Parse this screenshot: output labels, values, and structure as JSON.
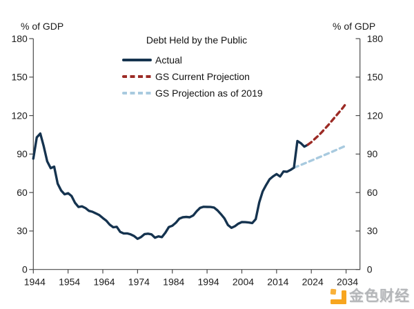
{
  "watermark": {
    "text": "金色财经",
    "logo_color": "#f7a51f",
    "logo_accent_color": "#f9b13a",
    "text_color": "#b4b6b9"
  },
  "chart_data": {
    "type": "line",
    "title": "Debt Held by the Public",
    "left_axis_label": "% of GDP",
    "right_axis_label": "% of GDP",
    "xlabel": "",
    "ylabel": "% of GDP",
    "xlim": [
      1944,
      2038
    ],
    "ylim": [
      0,
      180
    ],
    "x_ticks": [
      1944,
      1954,
      1964,
      1974,
      1984,
      1994,
      2004,
      2014,
      2024,
      2034
    ],
    "y_ticks": [
      0,
      30,
      60,
      90,
      120,
      150,
      180
    ],
    "grid": false,
    "legend_position": "top-center-inside",
    "colors": {
      "axis": "#4a4a4a",
      "text": "#1a1a1a"
    },
    "series": [
      {
        "name": "Actual",
        "color": "#15334f",
        "style": "solid",
        "points": [
          [
            1944,
            86.5
          ],
          [
            1945,
            103
          ],
          [
            1946,
            106
          ],
          [
            1947,
            96
          ],
          [
            1948,
            84.3
          ],
          [
            1949,
            79
          ],
          [
            1950,
            80.2
          ],
          [
            1951,
            66.9
          ],
          [
            1952,
            61.6
          ],
          [
            1953,
            58.6
          ],
          [
            1954,
            59.5
          ],
          [
            1955,
            57.3
          ],
          [
            1956,
            52
          ],
          [
            1957,
            48.7
          ],
          [
            1958,
            49.2
          ],
          [
            1959,
            47.9
          ],
          [
            1960,
            45.7
          ],
          [
            1961,
            45
          ],
          [
            1962,
            43.7
          ],
          [
            1963,
            42.4
          ],
          [
            1964,
            40.1
          ],
          [
            1965,
            38
          ],
          [
            1966,
            34.9
          ],
          [
            1967,
            32.9
          ],
          [
            1968,
            33.3
          ],
          [
            1969,
            29.3
          ],
          [
            1970,
            28.1
          ],
          [
            1971,
            28.1
          ],
          [
            1972,
            27.4
          ],
          [
            1973,
            26.1
          ],
          [
            1974,
            23.9
          ],
          [
            1975,
            25.3
          ],
          [
            1976,
            27.6
          ],
          [
            1977,
            27.9
          ],
          [
            1978,
            27.4
          ],
          [
            1979,
            24.8
          ],
          [
            1980,
            25.8
          ],
          [
            1981,
            25.2
          ],
          [
            1982,
            28.7
          ],
          [
            1983,
            33.1
          ],
          [
            1984,
            34.1
          ],
          [
            1985,
            36.4
          ],
          [
            1986,
            39.6
          ],
          [
            1987,
            40.7
          ],
          [
            1988,
            41
          ],
          [
            1989,
            40.7
          ],
          [
            1990,
            42.1
          ],
          [
            1991,
            45.4
          ],
          [
            1992,
            48
          ],
          [
            1993,
            48.9
          ],
          [
            1994,
            48.8
          ],
          [
            1995,
            48.7
          ],
          [
            1996,
            48.3
          ],
          [
            1997,
            46.1
          ],
          [
            1998,
            43.1
          ],
          [
            1999,
            39.8
          ],
          [
            2000,
            34.7
          ],
          [
            2001,
            32.5
          ],
          [
            2002,
            33.7
          ],
          [
            2003,
            35.7
          ],
          [
            2004,
            37
          ],
          [
            2005,
            36.9
          ],
          [
            2006,
            36.6
          ],
          [
            2007,
            36.2
          ],
          [
            2008,
            39.2
          ],
          [
            2009,
            52.3
          ],
          [
            2010,
            60.9
          ],
          [
            2011,
            65.9
          ],
          [
            2012,
            70.4
          ],
          [
            2013,
            72.6
          ],
          [
            2014,
            74.4
          ],
          [
            2015,
            72.5
          ],
          [
            2016,
            76.4
          ],
          [
            2017,
            76.2
          ],
          [
            2018,
            77.6
          ],
          [
            2019,
            79.4
          ],
          [
            2020,
            100.2
          ],
          [
            2021,
            98.4
          ],
          [
            2022,
            95.8
          ],
          [
            2023,
            97.3
          ]
        ]
      },
      {
        "name": "GS Current Projection",
        "color": "#9c2b25",
        "style": "dashed",
        "points": [
          [
            2023,
            97.3
          ],
          [
            2024,
            99.3
          ],
          [
            2025,
            101.8
          ],
          [
            2026,
            104.3
          ],
          [
            2027,
            107
          ],
          [
            2028,
            110
          ],
          [
            2029,
            113
          ],
          [
            2030,
            116.2
          ],
          [
            2031,
            119.4
          ],
          [
            2032,
            122.6
          ],
          [
            2033,
            125.8
          ],
          [
            2034,
            129.5
          ]
        ]
      },
      {
        "name": "GS Projection as of 2019",
        "color": "#a8cadf",
        "style": "dashed",
        "points": [
          [
            2019,
            79.4
          ],
          [
            2020,
            80.4
          ],
          [
            2022,
            82.6
          ],
          [
            2024,
            84.9
          ],
          [
            2026,
            87.2
          ],
          [
            2028,
            89.5
          ],
          [
            2030,
            91.8
          ],
          [
            2032,
            94.2
          ],
          [
            2034,
            96.6
          ]
        ]
      }
    ]
  }
}
